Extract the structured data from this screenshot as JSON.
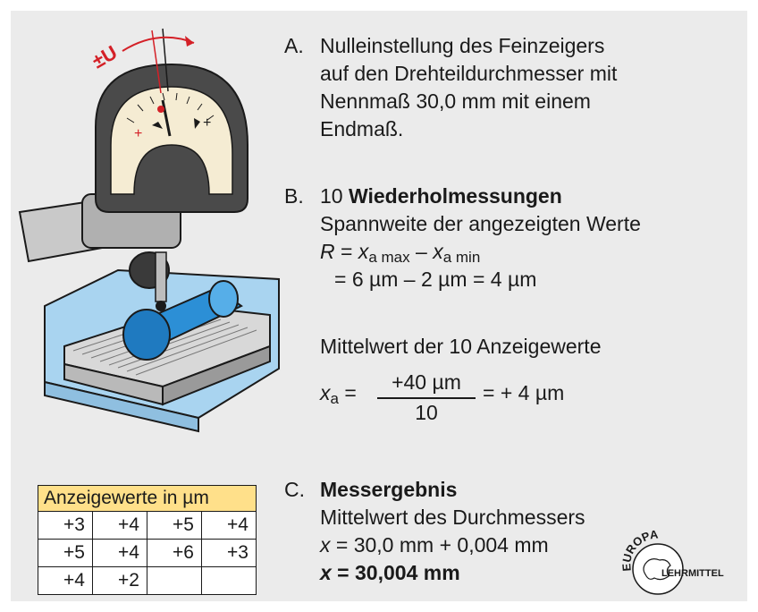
{
  "illustration": {
    "dial_label": "±U",
    "plus_left": "+",
    "plus_right": "+",
    "colors": {
      "accent_red": "#d42027",
      "blue_light": "#a9d4f0",
      "blue_part": "#2c8fd6",
      "dial_face": "#f5ecd3",
      "housing": "#4a4a4a"
    }
  },
  "step_a": {
    "letter": "A.",
    "lines": [
      "Nulleinstellung des Feinzeigers",
      "auf den Drehteildurchmesser mit",
      "Nennmaß 30,0 mm mit einem",
      "Endmaß."
    ]
  },
  "step_b": {
    "letter": "B.",
    "number": "10",
    "title": "Wiederholmessungen",
    "line2": "Spannweite der angezeigten Werte",
    "range_R": "R",
    "range_eq": " = ",
    "range_x1": "x",
    "range_sub1": "a max",
    "range_minus": " – ",
    "range_x2": "x",
    "range_sub2": "a min",
    "range_line2": "= 6 µm – 2 µm = 4 µm",
    "mean_label": "Mittelwert der 10 Anzeigewerte",
    "mean_x": "x",
    "mean_sub": "a",
    "mean_eq": " =",
    "mean_numerator": "+40 µm",
    "mean_denominator": "10",
    "mean_result": "= + 4 µm"
  },
  "step_c": {
    "letter": "C.",
    "title": "Messergebnis",
    "line2": "Mittelwert des Durchmessers",
    "x1": "x",
    "line3": " = 30,0 mm + 0,004 mm",
    "x2": "x",
    "line4": " = 30,004 mm"
  },
  "table": {
    "header": "Anzeigewerte in µm",
    "rows": [
      [
        "+3",
        "+4",
        "+5",
        "+4"
      ],
      [
        "+5",
        "+4",
        "+6",
        "+3"
      ],
      [
        "+4",
        "+2",
        "",
        ""
      ]
    ]
  },
  "logo": {
    "top_text": "EUROPA",
    "bottom_text": "LEHRMITTEL"
  }
}
